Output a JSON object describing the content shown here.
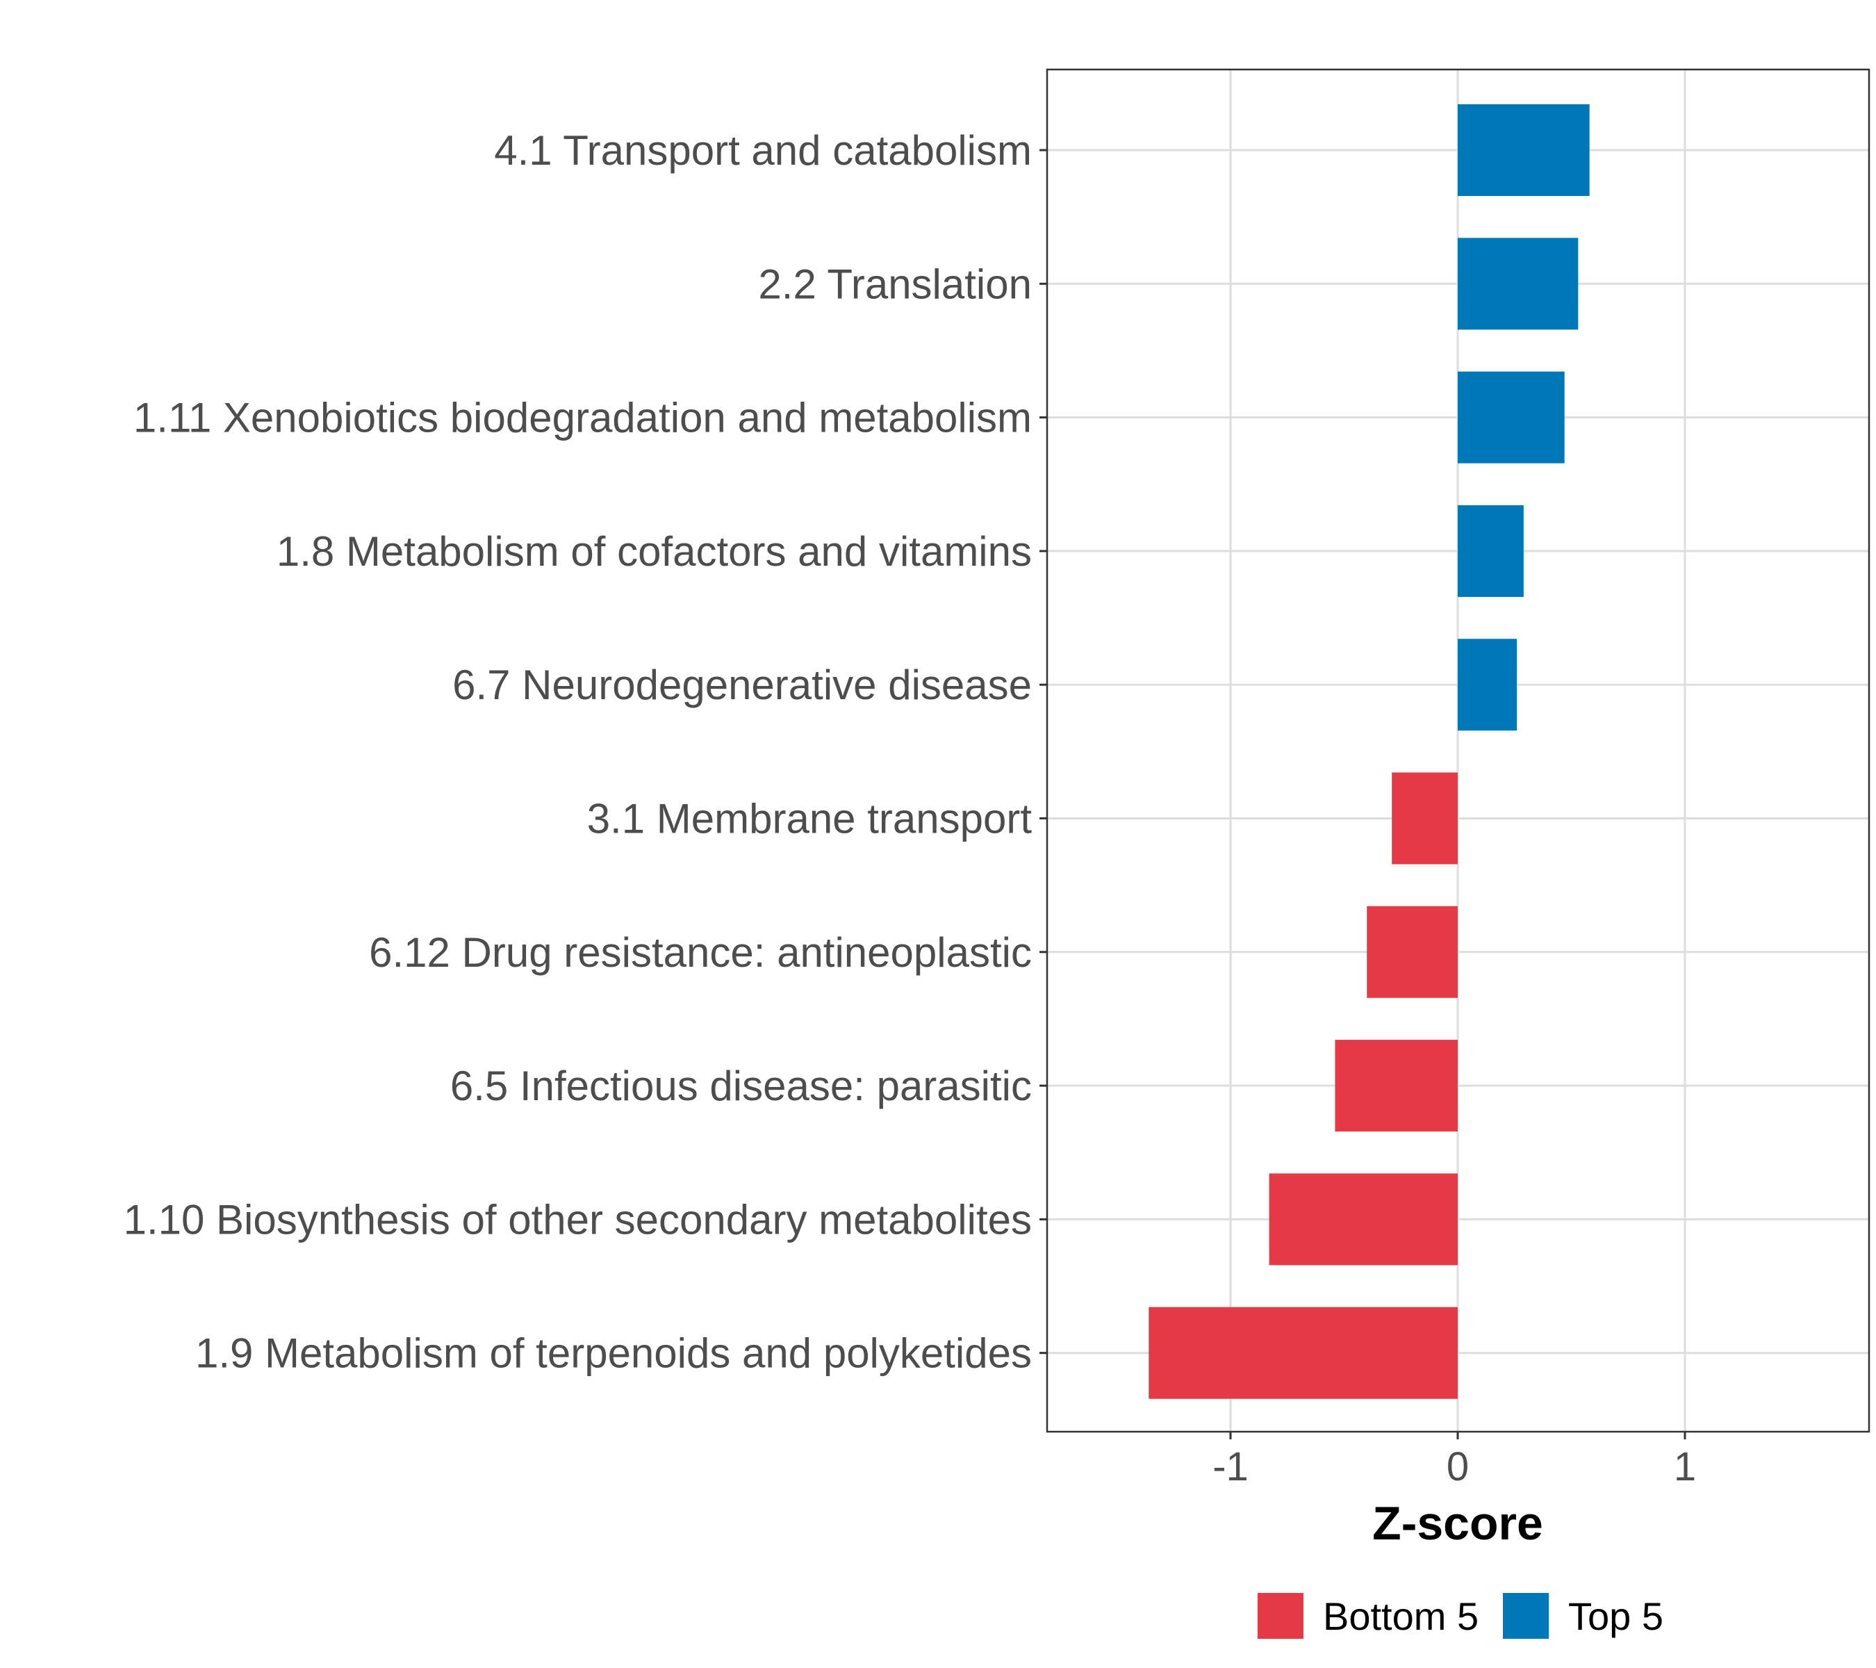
{
  "chart_data": {
    "type": "bar",
    "orientation": "horizontal",
    "xlabel": "Z-score",
    "xlim": [
      -1.82,
      1.82
    ],
    "xticks": [
      -1,
      0,
      1
    ],
    "xtick_labels": [
      "-1",
      "0",
      "1"
    ],
    "grid": true,
    "categories": [
      "4.1 Transport and catabolism",
      "2.2 Translation",
      "1.11 Xenobiotics biodegradation and metabolism",
      "1.8 Metabolism of cofactors and vitamins",
      "6.7 Neurodegenerative disease",
      "3.1 Membrane transport",
      "6.12 Drug resistance: antineoplastic",
      "6.5 Infectious disease: parasitic",
      "1.10 Biosynthesis of other secondary metabolites",
      "1.9 Metabolism of terpenoids and polyketides"
    ],
    "values": [
      0.58,
      0.53,
      0.47,
      0.29,
      0.26,
      -0.29,
      -0.4,
      -0.54,
      -0.83,
      -1.36
    ],
    "groups": [
      "Top 5",
      "Top 5",
      "Top 5",
      "Top 5",
      "Top 5",
      "Bottom 5",
      "Bottom 5",
      "Bottom 5",
      "Bottom 5",
      "Bottom 5"
    ],
    "legend": {
      "position": "bottom",
      "entries": [
        {
          "label": "Bottom 5",
          "color": "#E63946"
        },
        {
          "label": "Top 5",
          "color": "#0077B6"
        }
      ]
    }
  }
}
